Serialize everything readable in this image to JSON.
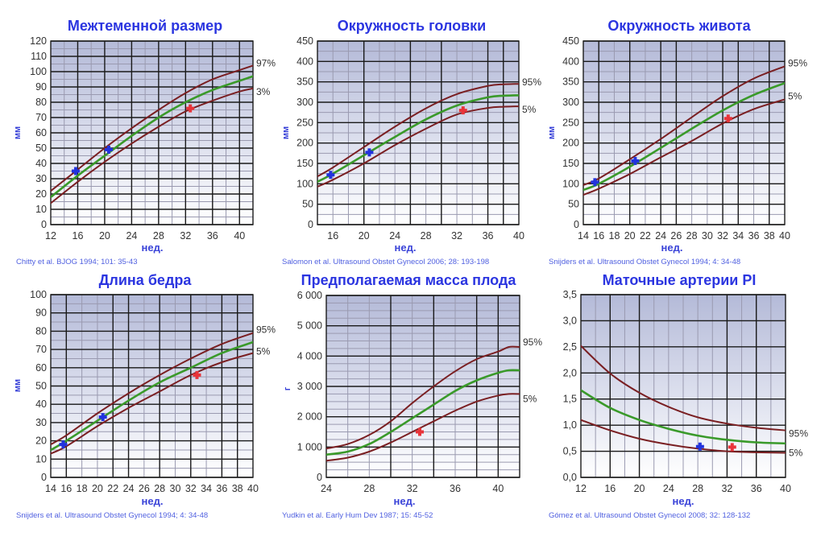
{
  "colors": {
    "title": "#2b35e0",
    "percentile_line": "#7a1f22",
    "median_line": "#3a9a2a",
    "marker_blue": "#2233dd",
    "marker_red": "#e8343a",
    "grid_major": "#1a1a1a",
    "grid_minor": "#9a9ab0",
    "plot_top": "#b8bedb",
    "plot_bottom": "#ffffff"
  },
  "chart_data": [
    {
      "id": "bpd",
      "type": "line",
      "title": "Межтеменной размер",
      "xlabel": "нед.",
      "ylabel": "мм",
      "source": "Chitty et al. BJOG 1994; 101: 35-43",
      "xlim": [
        12,
        42
      ],
      "ylim": [
        0,
        120
      ],
      "xticks": [
        12,
        16,
        20,
        24,
        28,
        32,
        36,
        40
      ],
      "xtick_labels": [
        "12",
        "16",
        "20",
        "24",
        "28",
        "32",
        "36",
        "40"
      ],
      "yticks": [
        0,
        10,
        20,
        30,
        40,
        50,
        60,
        70,
        80,
        90,
        100,
        110,
        120
      ],
      "ytick_labels": [
        "0",
        "10",
        "20",
        "30",
        "40",
        "50",
        "60",
        "70",
        "80",
        "90",
        "100",
        "110",
        "120"
      ],
      "grid": true,
      "series": [
        {
          "name": "97%",
          "role": "upper",
          "x": [
            12,
            16,
            20,
            24,
            28,
            32,
            36,
            40,
            42
          ],
          "y": [
            22,
            36,
            50,
            63,
            75,
            86,
            95,
            101,
            104
          ]
        },
        {
          "name": "median",
          "role": "median",
          "x": [
            12,
            16,
            20,
            24,
            28,
            32,
            36,
            40,
            42
          ],
          "y": [
            18,
            32,
            45,
            58,
            70,
            80,
            88,
            94,
            97
          ]
        },
        {
          "name": "3%",
          "role": "lower",
          "x": [
            12,
            16,
            20,
            24,
            28,
            32,
            36,
            40,
            42
          ],
          "y": [
            14,
            28,
            41,
            53,
            64,
            74,
            81,
            87,
            89
          ]
        }
      ],
      "markers": [
        {
          "x": 15.7,
          "y": 35,
          "color": "blue"
        },
        {
          "x": 20.6,
          "y": 49,
          "color": "blue"
        },
        {
          "x": 32.7,
          "y": 76,
          "color": "red"
        }
      ]
    },
    {
      "id": "hc",
      "type": "line",
      "title": "Окружность головки",
      "xlabel": "нед.",
      "ylabel": "мм",
      "source": "Salomon et al. Ultrasound Obstet Gynecol 2006; 28: 193-198",
      "xlim": [
        14,
        40
      ],
      "ylim": [
        0,
        450
      ],
      "xticks": [
        16,
        20,
        24,
        28,
        32,
        36,
        40
      ],
      "xtick_labels": [
        "16",
        "20",
        "24",
        "28",
        "32",
        "36",
        "40"
      ],
      "yticks": [
        0,
        50,
        100,
        150,
        200,
        250,
        300,
        350,
        400,
        450
      ],
      "ytick_labels": [
        "0",
        "50",
        "100",
        "150",
        "200",
        "250",
        "300",
        "350",
        "400",
        "450"
      ],
      "grid": true,
      "series": [
        {
          "name": "95%",
          "role": "upper",
          "x": [
            14,
            16,
            20,
            24,
            28,
            32,
            36,
            38,
            40
          ],
          "y": [
            118,
            140,
            190,
            240,
            285,
            320,
            340,
            344,
            345
          ]
        },
        {
          "name": "median",
          "role": "median",
          "x": [
            14,
            16,
            20,
            24,
            28,
            32,
            36,
            38,
            40
          ],
          "y": [
            105,
            125,
            170,
            215,
            258,
            292,
            312,
            316,
            317
          ]
        },
        {
          "name": "5%",
          "role": "lower",
          "x": [
            14,
            16,
            20,
            24,
            28,
            32,
            36,
            38,
            40
          ],
          "y": [
            93,
            110,
            150,
            195,
            235,
            270,
            286,
            289,
            290
          ]
        }
      ],
      "markers": [
        {
          "x": 15.7,
          "y": 122,
          "color": "blue"
        },
        {
          "x": 20.7,
          "y": 177,
          "color": "blue"
        },
        {
          "x": 32.8,
          "y": 280,
          "color": "red"
        }
      ]
    },
    {
      "id": "ac",
      "type": "line",
      "title": "Окружность живота",
      "xlabel": "нед.",
      "ylabel": "мм",
      "source": "Snijders et al. Ultrasound Obstet Gynecol 1994; 4: 34-48",
      "xlim": [
        14,
        40
      ],
      "ylim": [
        0,
        450
      ],
      "xticks": [
        14,
        16,
        18,
        20,
        22,
        24,
        26,
        28,
        30,
        32,
        34,
        36,
        38,
        40
      ],
      "xtick_labels": [
        "14",
        "16",
        "18",
        "20",
        "22",
        "24",
        "26",
        "28",
        "30",
        "32",
        "34",
        "36",
        "38",
        "40"
      ],
      "yticks": [
        0,
        50,
        100,
        150,
        200,
        250,
        300,
        350,
        400,
        450
      ],
      "ytick_labels": [
        "0",
        "50",
        "100",
        "150",
        "200",
        "250",
        "300",
        "350",
        "400",
        "450"
      ],
      "grid": true,
      "series": [
        {
          "name": "95%",
          "role": "upper",
          "x": [
            14,
            16,
            20,
            24,
            28,
            32,
            36,
            40
          ],
          "y": [
            97,
            113,
            160,
            210,
            263,
            315,
            358,
            388
          ]
        },
        {
          "name": "median",
          "role": "median",
          "x": [
            14,
            16,
            20,
            24,
            28,
            32,
            36,
            40
          ],
          "y": [
            85,
            100,
            142,
            188,
            235,
            280,
            318,
            347
          ]
        },
        {
          "name": "5%",
          "role": "lower",
          "x": [
            14,
            16,
            20,
            24,
            28,
            32,
            36,
            40
          ],
          "y": [
            73,
            88,
            124,
            165,
            205,
            248,
            283,
            307
          ]
        }
      ],
      "markers": [
        {
          "x": 15.5,
          "y": 104,
          "color": "blue"
        },
        {
          "x": 20.7,
          "y": 156,
          "color": "blue"
        },
        {
          "x": 32.7,
          "y": 260,
          "color": "red"
        }
      ]
    },
    {
      "id": "fl",
      "type": "line",
      "title": "Длина бедра",
      "xlabel": "нед.",
      "ylabel": "мм",
      "source": "Snijders et al. Ultrasound Obstet Gynecol 1994; 4: 34-48",
      "xlim": [
        14,
        40
      ],
      "ylim": [
        0,
        100
      ],
      "xticks": [
        14,
        16,
        18,
        20,
        22,
        24,
        26,
        28,
        30,
        32,
        34,
        36,
        38,
        40
      ],
      "xtick_labels": [
        "14",
        "16",
        "18",
        "20",
        "22",
        "24",
        "26",
        "28",
        "30",
        "32",
        "34",
        "36",
        "38",
        "40"
      ],
      "yticks": [
        0,
        10,
        20,
        30,
        40,
        50,
        60,
        70,
        80,
        90,
        100
      ],
      "ytick_labels": [
        "0",
        "10",
        "20",
        "30",
        "40",
        "50",
        "60",
        "70",
        "80",
        "90",
        "100"
      ],
      "grid": true,
      "series": [
        {
          "name": "95%",
          "role": "upper",
          "x": [
            14,
            16,
            20,
            24,
            28,
            32,
            36,
            40
          ],
          "y": [
            18,
            23,
            35,
            46,
            56,
            65,
            73,
            79
          ]
        },
        {
          "name": "median",
          "role": "median",
          "x": [
            14,
            16,
            20,
            24,
            28,
            32,
            36,
            40
          ],
          "y": [
            15,
            20,
            31,
            42,
            52,
            60,
            68,
            74
          ]
        },
        {
          "name": "5%",
          "role": "lower",
          "x": [
            14,
            16,
            20,
            24,
            28,
            32,
            36,
            40
          ],
          "y": [
            13,
            17,
            28,
            38,
            47,
            56,
            63,
            68
          ]
        }
      ],
      "markers": [
        {
          "x": 15.6,
          "y": 18,
          "color": "blue"
        },
        {
          "x": 20.7,
          "y": 33,
          "color": "blue"
        },
        {
          "x": 32.8,
          "y": 56,
          "color": "red"
        }
      ]
    },
    {
      "id": "efw",
      "type": "line",
      "title": "Предполагаемая масса плода",
      "xlabel": "нед.",
      "ylabel": "г",
      "source": "Yudkin et al. Early Hum Dev 1987; 15: 45-52",
      "xlim": [
        24,
        42
      ],
      "ylim": [
        0,
        6000
      ],
      "xticks": [
        24,
        28,
        32,
        36,
        40
      ],
      "xtick_labels": [
        "24",
        "28",
        "32",
        "36",
        "40"
      ],
      "yticks": [
        0,
        1000,
        2000,
        3000,
        4000,
        5000,
        6000
      ],
      "ytick_labels": [
        "0",
        "1 000",
        "2 000",
        "3 000",
        "4 000",
        "5 000",
        "6 000"
      ],
      "grid": true,
      "series": [
        {
          "name": "95%",
          "role": "upper",
          "x": [
            24,
            26,
            28,
            30,
            32,
            34,
            36,
            38,
            40,
            41,
            42
          ],
          "y": [
            950,
            1100,
            1400,
            1850,
            2450,
            3000,
            3500,
            3900,
            4150,
            4300,
            4300
          ]
        },
        {
          "name": "median",
          "role": "median",
          "x": [
            24,
            26,
            28,
            30,
            32,
            34,
            36,
            38,
            40,
            41,
            42
          ],
          "y": [
            750,
            850,
            1100,
            1500,
            1950,
            2400,
            2850,
            3200,
            3450,
            3530,
            3530
          ]
        },
        {
          "name": "5%",
          "role": "lower",
          "x": [
            24,
            26,
            28,
            30,
            32,
            34,
            36,
            38,
            40,
            41,
            42
          ],
          "y": [
            550,
            650,
            850,
            1150,
            1500,
            1850,
            2200,
            2500,
            2700,
            2750,
            2750
          ]
        }
      ],
      "markers": [
        {
          "x": 32.7,
          "y": 1500,
          "color": "red"
        }
      ]
    },
    {
      "id": "ut_pi",
      "type": "line",
      "title": "Маточные артерии PI",
      "xlabel": "нед.",
      "ylabel": "",
      "source": "Gómez et al. Ultrasound Obstet Gynecol 2008; 32: 128-132",
      "xlim": [
        12,
        40
      ],
      "ylim": [
        0,
        3.5
      ],
      "xticks": [
        12,
        16,
        20,
        24,
        28,
        32,
        36,
        40
      ],
      "xtick_labels": [
        "12",
        "16",
        "20",
        "24",
        "28",
        "32",
        "36",
        "40"
      ],
      "yticks": [
        0,
        0.5,
        1.0,
        1.5,
        2.0,
        2.5,
        3.0,
        3.5
      ],
      "ytick_labels": [
        "0,0",
        "0,5",
        "1,0",
        "1,5",
        "2,0",
        "2,5",
        "3,0",
        "3,5"
      ],
      "grid": true,
      "series": [
        {
          "name": "95%",
          "role": "upper",
          "x": [
            12,
            16,
            20,
            24,
            28,
            32,
            36,
            40
          ],
          "y": [
            2.52,
            1.99,
            1.62,
            1.35,
            1.15,
            1.03,
            0.95,
            0.9
          ]
        },
        {
          "name": "median",
          "role": "median",
          "x": [
            12,
            16,
            20,
            24,
            28,
            32,
            36,
            40
          ],
          "y": [
            1.67,
            1.33,
            1.1,
            0.93,
            0.8,
            0.72,
            0.67,
            0.65
          ]
        },
        {
          "name": "5%",
          "role": "lower",
          "x": [
            12,
            16,
            20,
            24,
            28,
            32,
            36,
            40
          ],
          "y": [
            1.1,
            0.9,
            0.74,
            0.63,
            0.55,
            0.5,
            0.48,
            0.47
          ]
        }
      ],
      "markers": [
        {
          "x": 28.3,
          "y": 0.59,
          "color": "blue"
        },
        {
          "x": 32.7,
          "y": 0.58,
          "color": "red"
        }
      ]
    }
  ]
}
